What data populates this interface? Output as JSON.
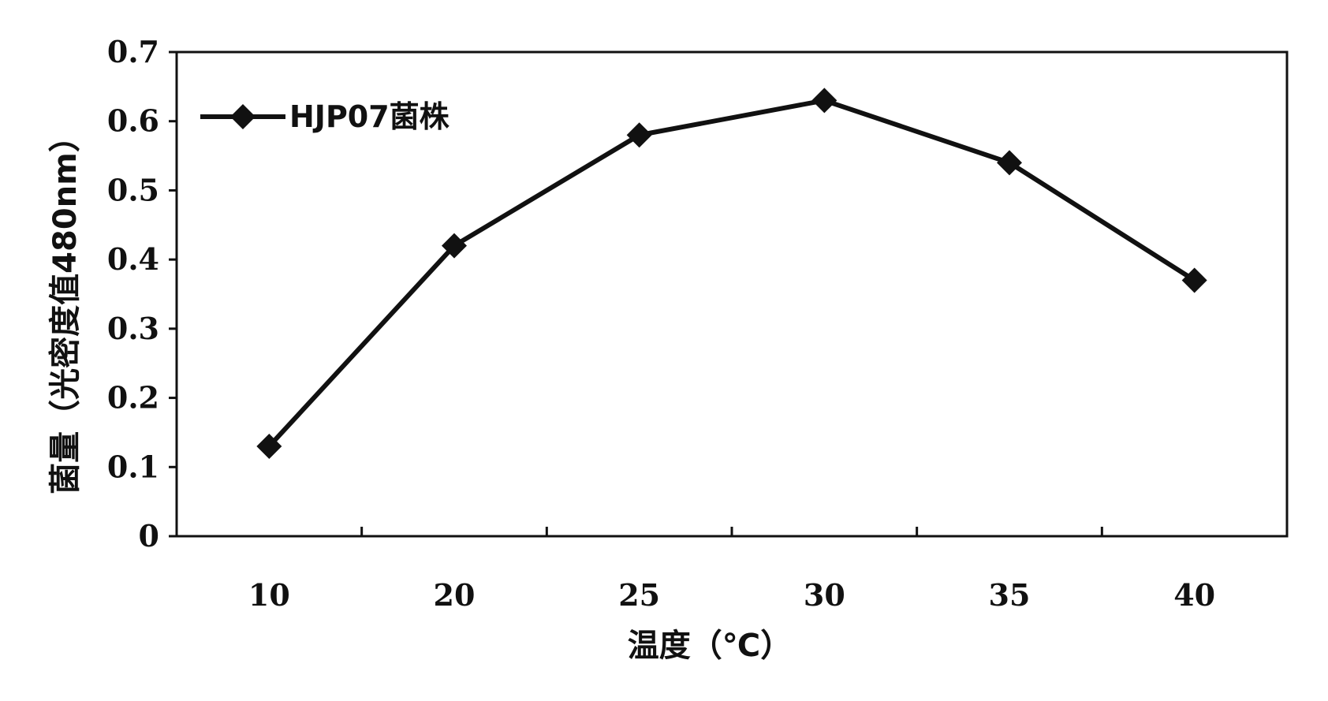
{
  "chart_data": {
    "type": "line",
    "categories": [
      "10",
      "20",
      "25",
      "30",
      "35",
      "40"
    ],
    "series": [
      {
        "name": "HJP07菌株",
        "values": [
          0.13,
          0.42,
          0.58,
          0.63,
          0.54,
          0.37
        ],
        "color": "#111111",
        "marker": "diamond"
      }
    ],
    "xlabel": "温度（℃）",
    "ylabel": "菌量（光密度值480nm）",
    "ylim": [
      0,
      0.7
    ],
    "yticks": [
      "0",
      "0.1",
      "0.2",
      "0.3",
      "0.4",
      "0.5",
      "0.6",
      "0.7"
    ],
    "grid": false,
    "legend": "top-left"
  }
}
